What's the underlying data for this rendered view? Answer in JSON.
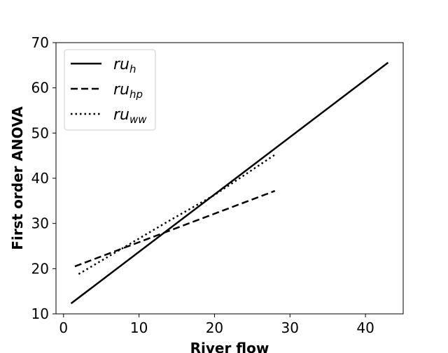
{
  "chart_data": {
    "type": "line",
    "xlabel": "River flow",
    "ylabel": "First order ANOVA",
    "xlim": [
      -1,
      45
    ],
    "ylim": [
      10,
      70
    ],
    "xticks": [
      0,
      10,
      20,
      30,
      40
    ],
    "yticks": [
      10,
      20,
      30,
      40,
      50,
      60,
      70
    ],
    "grid": false,
    "legend_position": "top-left",
    "series": [
      {
        "name": "ru_h",
        "name_base": "ru",
        "name_sub": "h",
        "style": "solid",
        "color": "#000000",
        "x": [
          1,
          43
        ],
        "y": [
          12.3,
          65.6
        ]
      },
      {
        "name": "ru_hp",
        "name_base": "ru",
        "name_sub": "hp",
        "style": "dashed",
        "color": "#000000",
        "x": [
          1.5,
          28
        ],
        "y": [
          20.5,
          37.2
        ]
      },
      {
        "name": "ru_ww",
        "name_base": "ru",
        "name_sub": "ww",
        "style": "dotted",
        "color": "#000000",
        "x": [
          2,
          8,
          14,
          20,
          28
        ],
        "y": [
          18.8,
          24.7,
          30.6,
          36.3,
          45.2
        ]
      }
    ]
  }
}
